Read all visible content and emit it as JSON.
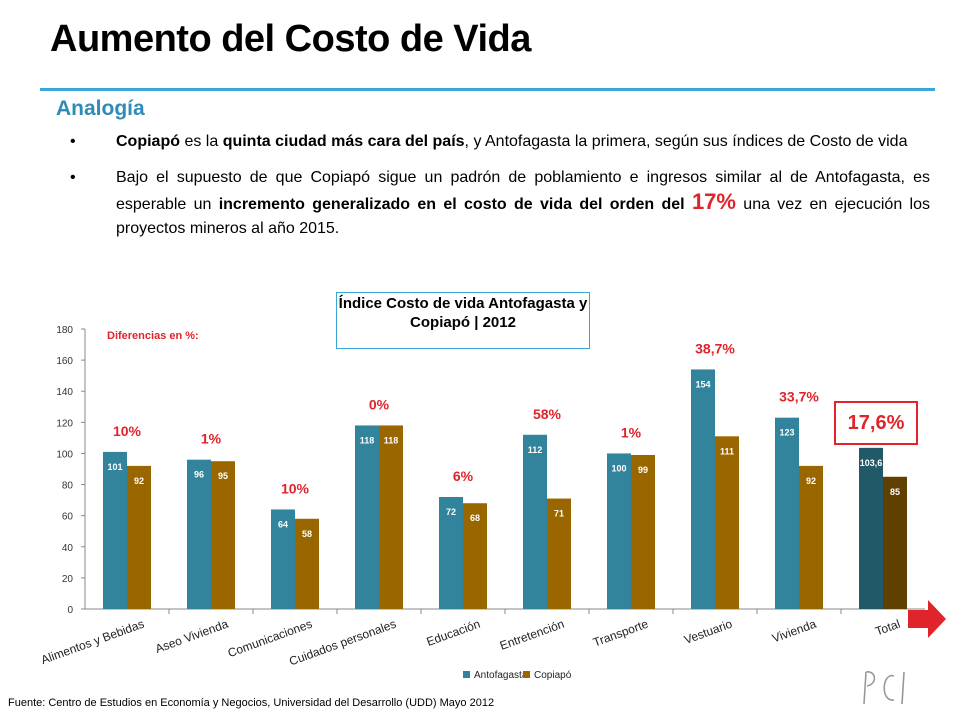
{
  "header": {
    "title": "Aumento del Costo de Vida",
    "subtitle": "Analogía"
  },
  "bullets": {
    "b1": {
      "p1": "Copiapó",
      "p2": " es la ",
      "p3": "quinta ciudad más cara del país",
      "p4": ", y Antofagasta la primera, según sus índices de Costo de vida"
    },
    "b2": {
      "p1": "Bajo el supuesto de que Copiapó sigue un padrón de poblamiento e ingresos similar al de Antofagasta, es esperable un ",
      "p2": "incremento generalizado en el costo de vida del orden del ",
      "p3": "17%",
      "p4": " una vez en ejecución los proyectos mineros al año 2015."
    }
  },
  "chart_data": {
    "type": "bar",
    "title": "Índice Costo de vida Antofagasta y Copiapó | 2012",
    "annotation": "Diferencias en %:",
    "categories": [
      "Alimentos y Bebidas",
      "Aseo Vivienda",
      "Comunicaciones",
      "Cuidados personales",
      "Educación",
      "Entretención",
      "Transporte",
      "Vestuario",
      "Vivienda",
      "Total"
    ],
    "series": [
      {
        "name": "Antofagasta",
        "values": [
          101,
          96,
          64,
          118,
          72,
          112,
          100,
          154,
          123,
          103.6
        ],
        "labels": [
          "101",
          "96",
          "64",
          "118",
          "72",
          "112",
          "100",
          "154",
          "123",
          "103,6"
        ]
      },
      {
        "name": "Copiapó",
        "values": [
          92,
          95,
          58,
          118,
          68,
          71,
          99,
          111,
          92,
          85
        ],
        "labels": [
          "92",
          "95",
          "58",
          "118",
          "68",
          "71",
          "99",
          "111",
          "92",
          "85"
        ]
      }
    ],
    "differences": [
      "10%",
      "1%",
      "10%",
      "0%",
      "6%",
      "58%",
      "1%",
      "38,7%",
      "33,7%",
      "17,6%"
    ],
    "ylim": [
      0,
      180
    ],
    "yticks": [
      "0",
      "20",
      "40",
      "60",
      "80",
      "100",
      "120",
      "140",
      "160",
      "180"
    ],
    "legend_position": "bottom",
    "colors": {
      "antofagasta": "#31849b",
      "copiapo": "#996600",
      "total_antofagasta": "#215968",
      "total_copiapo": "#604000",
      "diff": "#e0242b"
    }
  },
  "footer": {
    "source": "Fuente: Centro de Estudios en Economía y Negocios, Universidad del Desarrollo (UDD) Mayo  2012"
  },
  "icons": {
    "next": "next-arrow-icon",
    "logo": "logo-icon"
  }
}
